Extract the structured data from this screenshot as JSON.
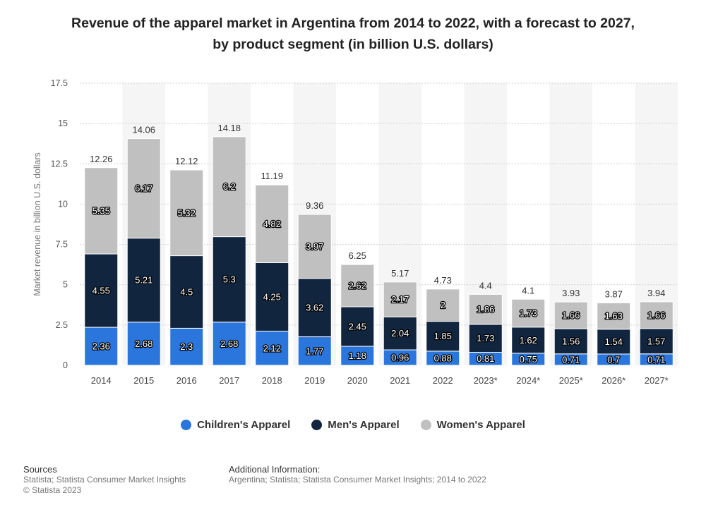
{
  "title_line1": "Revenue of the apparel market in Argentina from 2014 to 2022, with a forecast to 2027,",
  "title_line2": "by product segment (in billion U.S. dollars)",
  "chart_data": {
    "type": "bar",
    "stacked": true,
    "ylabel": "Market revenue in billion U.S. dollars",
    "xlabel": "",
    "ylim": [
      0,
      17.5
    ],
    "yticks": [
      "0",
      "2.5",
      "5",
      "7.5",
      "10",
      "12.5",
      "15",
      "17.5"
    ],
    "grid": true,
    "legend_position": "bottom",
    "categories": [
      "2014",
      "2015",
      "2016",
      "2017",
      "2018",
      "2019",
      "2020",
      "2021",
      "2022",
      "2023*",
      "2024*",
      "2025*",
      "2026*",
      "2027*"
    ],
    "series": [
      {
        "name": "Children's Apparel",
        "color": "#2a76dd",
        "values": [
          2.36,
          2.68,
          2.3,
          2.68,
          2.12,
          1.77,
          1.18,
          0.96,
          0.88,
          0.81,
          0.75,
          0.71,
          0.7,
          0.71
        ]
      },
      {
        "name": "Men's Apparel",
        "color": "#11253f",
        "values": [
          4.55,
          5.21,
          4.5,
          5.3,
          4.25,
          3.62,
          2.45,
          2.04,
          1.85,
          1.73,
          1.62,
          1.56,
          1.54,
          1.57
        ]
      },
      {
        "name": "Women's Apparel",
        "color": "#c0c0c0",
        "values": [
          5.35,
          6.17,
          5.32,
          6.2,
          4.82,
          3.97,
          2.62,
          2.17,
          2,
          1.86,
          1.73,
          1.66,
          1.63,
          1.66
        ]
      }
    ],
    "totals": [
      "12.26",
      "14.06",
      "12.12",
      "14.18",
      "11.19",
      "9.36",
      "6.25",
      "5.17",
      "4.73",
      "4.4",
      "4.1",
      "3.93",
      "3.87",
      "3.94"
    ]
  },
  "footer": {
    "sources_heading": "Sources",
    "sources_line1": "Statista; Statista Consumer Market Insights",
    "sources_line2": "© Statista 2023",
    "info_heading": "Additional Information:",
    "info_line1": "Argentina; Statista; Statista Consumer Market Insights; 2014 to 2022"
  }
}
